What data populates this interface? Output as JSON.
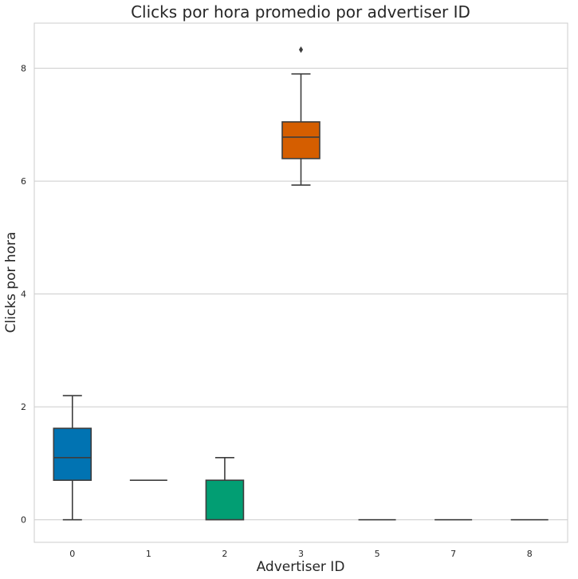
{
  "chart_data": {
    "type": "box",
    "title": "Clicks por hora promedio por advertiser ID",
    "xlabel": "Advertiser ID",
    "ylabel": "Clicks por hora",
    "categories": [
      "0",
      "1",
      "2",
      "3",
      "5",
      "7",
      "8"
    ],
    "ylim": [
      -0.4,
      8.8
    ],
    "yticks": [
      0,
      2,
      4,
      6,
      8
    ],
    "grid": "horizontal",
    "boxes": [
      {
        "category": "0",
        "whisker_low": 0,
        "q1": 0.7,
        "median": 1.1,
        "q3": 1.62,
        "whisker_high": 2.2,
        "outliers": [],
        "color": "#0173b2"
      },
      {
        "category": "1",
        "whisker_low": 0.7,
        "q1": 0.7,
        "median": 0.7,
        "q3": 0.7,
        "whisker_high": 0.7,
        "outliers": [],
        "color": "#de8f05"
      },
      {
        "category": "2",
        "whisker_low": 0,
        "q1": 0,
        "median": 0,
        "q3": 0.7,
        "whisker_high": 1.1,
        "outliers": [],
        "color": "#029e73"
      },
      {
        "category": "3",
        "whisker_low": 5.93,
        "q1": 6.4,
        "median": 6.78,
        "q3": 7.05,
        "whisker_high": 7.9,
        "outliers": [
          8.33
        ],
        "color": "#d55e00"
      },
      {
        "category": "5",
        "whisker_low": 0,
        "q1": 0,
        "median": 0,
        "q3": 0,
        "whisker_high": 0,
        "outliers": [],
        "color": "#cc78bc"
      },
      {
        "category": "7",
        "whisker_low": 0,
        "q1": 0,
        "median": 0,
        "q3": 0,
        "whisker_high": 0,
        "outliers": [],
        "color": "#ca9161"
      },
      {
        "category": "8",
        "whisker_low": 0,
        "q1": 0,
        "median": 0,
        "q3": 0,
        "whisker_high": 0,
        "outliers": [],
        "color": "#fbafe4"
      }
    ]
  }
}
